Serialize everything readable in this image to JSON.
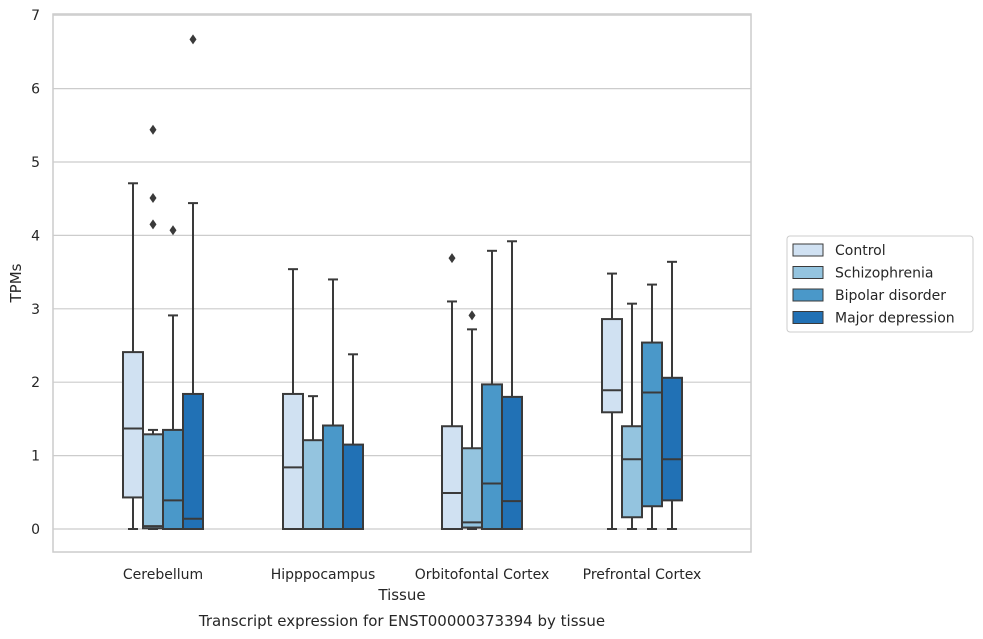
{
  "chart_data": {
    "type": "boxplot",
    "title": "Transcript expression for ENST00000373394 by tissue",
    "xlabel": "Tissue",
    "ylabel": "TPMs",
    "ylim": [
      -0.32,
      7.02
    ],
    "yticks": [
      0,
      1,
      2,
      3,
      4,
      5,
      6,
      7
    ],
    "grid": "horizontal",
    "legend_placement": "right",
    "categories": [
      "Cerebellum",
      "Hipppocampus",
      "Orbitofontal Cortex",
      "Prefrontal Cortex"
    ],
    "series": [
      {
        "name": "Control",
        "color": "#d0e1f2",
        "boxes": [
          {
            "whislo": 0.0,
            "q1": 0.43,
            "med": 1.37,
            "q3": 2.41,
            "whishi": 4.71,
            "fliers": []
          },
          {
            "whislo": 0.0,
            "q1": 0.0,
            "med": 0.84,
            "q3": 1.84,
            "whishi": 3.54,
            "fliers": []
          },
          {
            "whislo": 0.0,
            "q1": 0.0,
            "med": 0.49,
            "q3": 1.4,
            "whishi": 3.1,
            "fliers": [
              3.69
            ]
          },
          {
            "whislo": 0.0,
            "q1": 1.59,
            "med": 1.89,
            "q3": 2.86,
            "whishi": 3.48,
            "fliers": []
          }
        ]
      },
      {
        "name": "Schizophrenia",
        "color": "#94c4df",
        "boxes": [
          {
            "whislo": 0.0,
            "q1": 0.01,
            "med": 0.04,
            "q3": 1.29,
            "whishi": 1.35,
            "fliers": [
              4.15,
              4.51,
              5.44
            ]
          },
          {
            "whislo": 0.0,
            "q1": 0.0,
            "med": 0.0,
            "q3": 1.21,
            "whishi": 1.81,
            "fliers": []
          },
          {
            "whislo": 0.0,
            "q1": 0.02,
            "med": 0.09,
            "q3": 1.1,
            "whishi": 2.72,
            "fliers": [
              2.91
            ]
          },
          {
            "whislo": 0.0,
            "q1": 0.16,
            "med": 0.95,
            "q3": 1.4,
            "whishi": 3.07,
            "fliers": []
          }
        ]
      },
      {
        "name": "Bipolar disorder",
        "color": "#4a98c9",
        "boxes": [
          {
            "whislo": 0.0,
            "q1": 0.0,
            "med": 0.39,
            "q3": 1.35,
            "whishi": 2.91,
            "fliers": [
              4.07
            ]
          },
          {
            "whislo": 0.0,
            "q1": 0.0,
            "med": 0.0,
            "q3": 1.41,
            "whishi": 3.4,
            "fliers": []
          },
          {
            "whislo": 0.0,
            "q1": 0.0,
            "med": 0.62,
            "q3": 1.97,
            "whishi": 3.79,
            "fliers": []
          },
          {
            "whislo": 0.0,
            "q1": 0.31,
            "med": 1.86,
            "q3": 2.54,
            "whishi": 3.33,
            "fliers": []
          }
        ]
      },
      {
        "name": "Major depression",
        "color": "#2171b5",
        "boxes": [
          {
            "whislo": 0.0,
            "q1": 0.0,
            "med": 0.14,
            "q3": 1.84,
            "whishi": 4.44,
            "fliers": [
              6.67
            ]
          },
          {
            "whislo": 0.0,
            "q1": 0.0,
            "med": 0.0,
            "q3": 1.15,
            "whishi": 2.38,
            "fliers": []
          },
          {
            "whislo": 0.0,
            "q1": 0.0,
            "med": 0.38,
            "q3": 1.8,
            "whishi": 3.92,
            "fliers": []
          },
          {
            "whislo": 0.0,
            "q1": 0.39,
            "med": 0.95,
            "q3": 2.06,
            "whishi": 3.64,
            "fliers": []
          }
        ]
      }
    ]
  }
}
